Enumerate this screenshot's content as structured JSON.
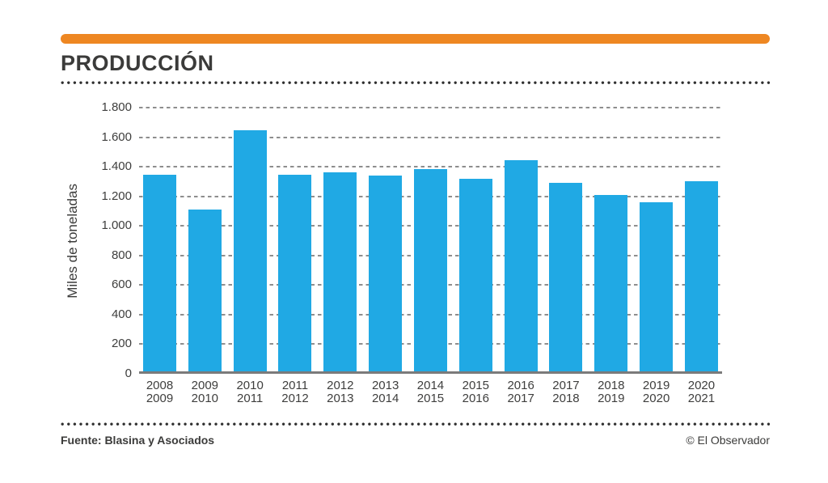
{
  "header": {
    "title": "PRODUCCIÓN"
  },
  "footer": {
    "source": "Fuente: Blasina y Asociados",
    "credit": "© El Observador"
  },
  "chart_data": {
    "type": "bar",
    "title": "PRODUCCIÓN",
    "ylabel": "Miles de toneladas",
    "unit": "miles de toneladas",
    "categories": [
      "2008/2009",
      "2009/2010",
      "2010/2011",
      "2011/2012",
      "2012/2013",
      "2013/2014",
      "2014/2015",
      "2015/2016",
      "2016/2017",
      "2017/2018",
      "2018/2019",
      "2019/2020",
      "2020/2021"
    ],
    "category_labels": [
      [
        "2008",
        "2009"
      ],
      [
        "2009",
        "2010"
      ],
      [
        "2010",
        "2011"
      ],
      [
        "2011",
        "2012"
      ],
      [
        "2012",
        "2013"
      ],
      [
        "2013",
        "2014"
      ],
      [
        "2014",
        "2015"
      ],
      [
        "2015",
        "2016"
      ],
      [
        "2016",
        "2017"
      ],
      [
        "2017",
        "2018"
      ],
      [
        "2018",
        "2019"
      ],
      [
        "2019",
        "2020"
      ],
      [
        "2020",
        "2021"
      ]
    ],
    "values": [
      1330,
      1095,
      1630,
      1330,
      1345,
      1325,
      1370,
      1300,
      1430,
      1275,
      1195,
      1145,
      1285
    ],
    "ylim": [
      0,
      1800
    ],
    "ytick_step": 200,
    "ytick_labels": [
      "0",
      "200",
      "400",
      "600",
      "800",
      "1.000",
      "1.200",
      "1.400",
      "1.600",
      "1.800"
    ],
    "grid": "dashed-horizontal",
    "legend": "none",
    "colors": {
      "bar": "#20a9e4",
      "accent_bar": "#ee8722",
      "grid": "#8e8e8e",
      "axis": "#7b7b7b",
      "text": "#3b3b3a"
    }
  }
}
